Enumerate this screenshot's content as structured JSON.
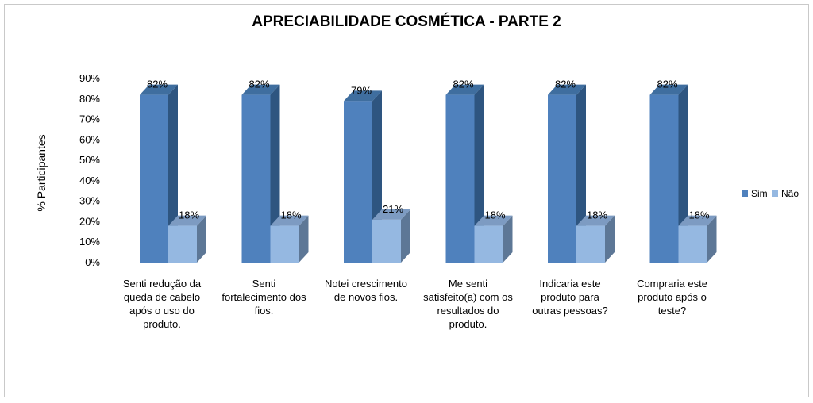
{
  "chart_data": {
    "type": "bar",
    "title": "APRECIABILIDADE COSMÉTICA - PARTE 2",
    "xlabel": "",
    "ylabel": "% Participantes",
    "ylim": [
      0,
      90
    ],
    "y_ticks": [
      "0%",
      "10%",
      "20%",
      "30%",
      "40%",
      "50%",
      "60%",
      "70%",
      "80%",
      "90%"
    ],
    "categories": [
      [
        "Senti redução da",
        "queda de cabelo",
        "após o uso do",
        "produto."
      ],
      [
        "Senti",
        "fortalecimento dos",
        "fios."
      ],
      [
        "Notei crescimento",
        "de novos fios."
      ],
      [
        "Me senti",
        "satisfeito(a) com os",
        "resultados do",
        "produto."
      ],
      [
        "Indicaria este",
        "produto para",
        "outras pessoas?"
      ],
      [
        "Compraria este",
        "produto após o",
        "teste?"
      ]
    ],
    "series": [
      {
        "name": "Sim",
        "values": [
          82,
          82,
          79,
          82,
          82,
          82
        ],
        "labels": [
          "82%",
          "82%",
          "79%",
          "82%",
          "82%",
          "82%"
        ]
      },
      {
        "name": "Não",
        "values": [
          18,
          18,
          21,
          18,
          18,
          18
        ],
        "labels": [
          "18%",
          "18%",
          "21%",
          "18%",
          "18%",
          "18%"
        ]
      }
    ],
    "legend_position": "right",
    "colors": {
      "sim_front": "#4f81bd",
      "sim_side": "#2e5580",
      "sim_top": "#3f6e9f",
      "nao_front": "#95b8e1",
      "nao_side": "#5d7796",
      "nao_top": "#7d9bc2"
    }
  }
}
